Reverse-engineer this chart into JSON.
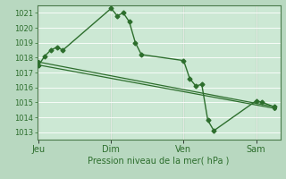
{
  "background_color": "#b8d8c0",
  "plot_bg_color": "#cce8d4",
  "grid_color": "#ffffff",
  "line_color": "#2d6e2d",
  "marker_color": "#2d6e2d",
  "xlabel": "Pression niveau de la mer( hPa )",
  "ylim": [
    1012.5,
    1021.5
  ],
  "yticks": [
    1013,
    1014,
    1015,
    1016,
    1017,
    1018,
    1019,
    1020,
    1021
  ],
  "day_labels": [
    "Jeu",
    "Dim",
    "Ven",
    "Sam"
  ],
  "day_positions": [
    0,
    48,
    96,
    144
  ],
  "xlim": [
    -1,
    160
  ],
  "series1_x": [
    0,
    4,
    8,
    12,
    16,
    48,
    52,
    56,
    60,
    64,
    68,
    96,
    100,
    104,
    108,
    112,
    116,
    144,
    148,
    156
  ],
  "series1_y": [
    1017.5,
    1018.1,
    1018.5,
    1018.7,
    1018.5,
    1021.3,
    1020.8,
    1021.0,
    1020.4,
    1019.0,
    1018.2,
    1017.8,
    1016.6,
    1016.1,
    1016.2,
    1013.8,
    1013.1,
    1015.1,
    1015.0,
    1014.7
  ],
  "series2_x": [
    0,
    156
  ],
  "series2_y": [
    1017.7,
    1014.7
  ],
  "series3_x": [
    0,
    156
  ],
  "series3_y": [
    1017.5,
    1014.6
  ]
}
